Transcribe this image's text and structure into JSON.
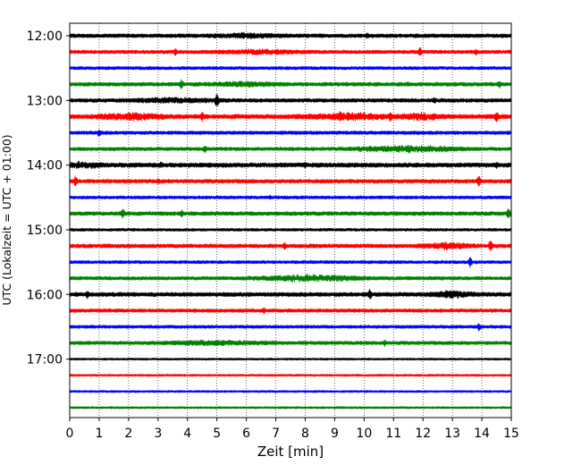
{
  "chart_data": {
    "type": "line",
    "title": "",
    "xlabel": "Zeit  [min]",
    "ylabel": "UTC (Lokalzeit = UTC + 01:00)",
    "xlim": [
      0,
      15
    ],
    "x_ticks": [
      "0",
      "1",
      "2",
      "3",
      "4",
      "5",
      "6",
      "7",
      "8",
      "9",
      "10",
      "11",
      "12",
      "13",
      "14",
      "15"
    ],
    "y_ticks": [
      "12:00",
      "13:00",
      "14:00",
      "15:00",
      "16:00",
      "17:00"
    ],
    "grid": "vertical dotted",
    "legend": "none",
    "trace_interval_min": 15,
    "colors": [
      "#000000",
      "#ff0000",
      "#0000ff",
      "#008000"
    ],
    "series": [
      {
        "start": "12:00",
        "color": "#000000",
        "amp": 2.2,
        "spikes": [
          [
            10.1,
            4
          ]
        ],
        "bursts": [
          [
            6,
            1.5,
            2
          ]
        ]
      },
      {
        "start": "12:15",
        "color": "#ff0000",
        "amp": 2.0,
        "spikes": [
          [
            3.6,
            5
          ],
          [
            11.9,
            6
          ],
          [
            13.8,
            4
          ]
        ],
        "bursts": [
          [
            6.5,
            2,
            2
          ]
        ]
      },
      {
        "start": "12:30",
        "color": "#0000ff",
        "amp": 1.8,
        "spikes": [],
        "bursts": []
      },
      {
        "start": "12:45",
        "color": "#008000",
        "amp": 2.2,
        "spikes": [
          [
            3.8,
            6
          ],
          [
            11.5,
            3
          ],
          [
            14.6,
            5
          ]
        ],
        "bursts": [
          [
            6,
            1.5,
            2
          ]
        ]
      },
      {
        "start": "13:00",
        "color": "#000000",
        "amp": 2.2,
        "spikes": [
          [
            5.0,
            9
          ],
          [
            9.0,
            3
          ],
          [
            12.4,
            4
          ]
        ],
        "bursts": [
          [
            3.5,
            2,
            2
          ]
        ]
      },
      {
        "start": "13:15",
        "color": "#ff0000",
        "amp": 2.6,
        "spikes": [
          [
            4.5,
            6
          ],
          [
            9.2,
            7
          ],
          [
            10.9,
            7
          ],
          [
            14.5,
            7
          ]
        ],
        "bursts": [
          [
            2,
            1.5,
            3
          ],
          [
            9.5,
            2,
            3
          ],
          [
            12,
            1,
            3
          ]
        ]
      },
      {
        "start": "13:30",
        "color": "#0000ff",
        "amp": 2.0,
        "spikes": [
          [
            1.0,
            5
          ]
        ],
        "bursts": []
      },
      {
        "start": "13:45",
        "color": "#008000",
        "amp": 2.0,
        "spikes": [
          [
            4.6,
            5
          ]
        ],
        "bursts": [
          [
            11.5,
            2.5,
            3
          ]
        ]
      },
      {
        "start": "14:00",
        "color": "#000000",
        "amp": 2.6,
        "spikes": [
          [
            0.3,
            5
          ],
          [
            3.1,
            4
          ],
          [
            8.0,
            4
          ],
          [
            14.5,
            4
          ]
        ],
        "bursts": [
          [
            0.5,
            0.8,
            2
          ]
        ]
      },
      {
        "start": "14:15",
        "color": "#ff0000",
        "amp": 2.2,
        "spikes": [
          [
            0.2,
            7
          ],
          [
            3.0,
            4
          ],
          [
            13.9,
            7
          ]
        ],
        "bursts": []
      },
      {
        "start": "14:30",
        "color": "#0000ff",
        "amp": 1.8,
        "spikes": [
          [
            6.8,
            3
          ]
        ],
        "bursts": []
      },
      {
        "start": "14:45",
        "color": "#008000",
        "amp": 2.2,
        "spikes": [
          [
            1.8,
            7
          ],
          [
            3.8,
            5
          ],
          [
            14.9,
            7
          ]
        ],
        "bursts": []
      },
      {
        "start": "15:00",
        "color": "#000000",
        "amp": 1.6,
        "spikes": [],
        "bursts": []
      },
      {
        "start": "15:15",
        "color": "#ff0000",
        "amp": 2.2,
        "spikes": [
          [
            7.3,
            5
          ],
          [
            14.3,
            8
          ]
        ],
        "bursts": [
          [
            12.8,
            1.2,
            3
          ]
        ]
      },
      {
        "start": "15:30",
        "color": "#0000ff",
        "amp": 1.8,
        "spikes": [
          [
            13.6,
            6
          ]
        ],
        "bursts": []
      },
      {
        "start": "15:45",
        "color": "#008000",
        "amp": 2.0,
        "spikes": [],
        "bursts": [
          [
            8.2,
            2.5,
            3
          ]
        ]
      },
      {
        "start": "16:00",
        "color": "#000000",
        "amp": 2.4,
        "spikes": [
          [
            0.6,
            5
          ],
          [
            10.2,
            7
          ]
        ],
        "bursts": [
          [
            13,
            1,
            3
          ]
        ]
      },
      {
        "start": "16:15",
        "color": "#ff0000",
        "amp": 2.0,
        "spikes": [
          [
            6.6,
            4
          ]
        ],
        "bursts": []
      },
      {
        "start": "16:30",
        "color": "#0000ff",
        "amp": 1.8,
        "spikes": [
          [
            13.9,
            5
          ]
        ],
        "bursts": []
      },
      {
        "start": "16:45",
        "color": "#008000",
        "amp": 2.0,
        "spikes": [
          [
            10.7,
            4
          ]
        ],
        "bursts": [
          [
            5,
            2.5,
            2
          ]
        ]
      },
      {
        "start": "17:00",
        "color": "#000000",
        "amp": 1.2,
        "spikes": [],
        "bursts": []
      },
      {
        "start": "17:15",
        "color": "#ff0000",
        "amp": 1.2,
        "spikes": [],
        "bursts": []
      },
      {
        "start": "17:30",
        "color": "#0000ff",
        "amp": 1.2,
        "spikes": [],
        "bursts": []
      },
      {
        "start": "17:45",
        "color": "#008000",
        "amp": 1.2,
        "spikes": [],
        "bursts": []
      }
    ]
  }
}
